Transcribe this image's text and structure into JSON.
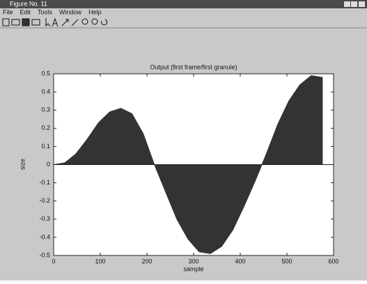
{
  "window": {
    "title": "Figure No. 11",
    "menu": [
      "File",
      "Edit",
      "Tools",
      "Window",
      "Help"
    ]
  },
  "chart_data": {
    "type": "area",
    "title": "Output (first frame/first granule)",
    "x_label": "sample",
    "y_label": "size",
    "x": [
      0,
      24,
      48,
      72,
      96,
      120,
      144,
      168,
      192,
      216,
      240,
      264,
      288,
      312,
      336,
      360,
      384,
      408,
      432,
      456,
      480,
      504,
      528,
      552,
      576
    ],
    "series": [
      {
        "color": "#333333",
        "values": [
          0,
          0.01,
          0.06,
          0.14,
          0.23,
          0.29,
          0.31,
          0.28,
          0.17,
          0.0,
          -0.15,
          -0.3,
          -0.41,
          -0.48,
          -0.49,
          -0.45,
          -0.36,
          -0.23,
          -0.09,
          0.06,
          0.22,
          0.35,
          0.44,
          0.49,
          0.48
        ]
      }
    ],
    "xlim": [
      0,
      600
    ],
    "xticks": [
      0,
      100,
      200,
      300,
      400,
      500,
      600
    ],
    "ylim": [
      -0.5,
      0.5
    ],
    "yticks": [
      -0.5,
      -0.4,
      -0.3,
      -0.2,
      -0.1,
      0,
      0.1,
      0.2,
      0.3,
      0.4,
      0.5
    ]
  }
}
